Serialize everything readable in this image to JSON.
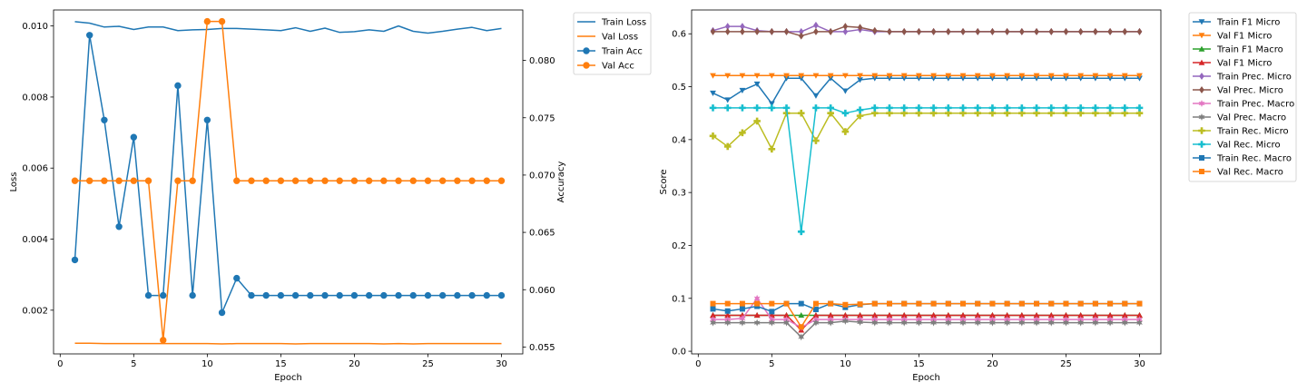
{
  "chart_data": [
    {
      "type": "line",
      "xlabel": "Epoch",
      "ylabel_left": "Loss",
      "ylabel_right": "Accuracy",
      "xlim": [
        -0.45,
        31.45
      ],
      "ylim_left": [
        0.00077,
        0.01045
      ],
      "ylim_right": [
        0.0544,
        0.0844
      ],
      "x_ticks": [
        0,
        5,
        10,
        15,
        20,
        25,
        30
      ],
      "y_ticks_left": [
        0.002,
        0.004,
        0.006,
        0.008,
        0.01
      ],
      "y_ticks_left_labels": [
        "0.002",
        "0.004",
        "0.006",
        "0.008",
        "0.010"
      ],
      "y_ticks_right": [
        0.055,
        0.06,
        0.065,
        0.07,
        0.075,
        0.08
      ],
      "y_ticks_right_labels": [
        "0.055",
        "0.060",
        "0.065",
        "0.070",
        "0.075",
        "0.080"
      ],
      "grid": false,
      "legend_position": "outside top-right",
      "x": [
        1,
        2,
        3,
        4,
        5,
        6,
        7,
        8,
        9,
        10,
        11,
        12,
        13,
        14,
        15,
        16,
        17,
        18,
        19,
        20,
        21,
        22,
        23,
        24,
        25,
        26,
        27,
        28,
        29,
        30
      ],
      "series": [
        {
          "name": "Train Loss",
          "axis": "left",
          "color": "#1f77b4",
          "marker": "none",
          "values": [
            0.01012,
            0.01008,
            0.00997,
            0.00999,
            0.0099,
            0.00997,
            0.00997,
            0.00987,
            0.00989,
            0.0099,
            0.00993,
            0.00993,
            0.00991,
            0.00989,
            0.00987,
            0.00995,
            0.00985,
            0.00994,
            0.00982,
            0.00984,
            0.00989,
            0.00985,
            0.01,
            0.00985,
            0.0098,
            0.00985,
            0.00991,
            0.00996,
            0.00987,
            0.00993
          ]
        },
        {
          "name": "Val Loss",
          "axis": "left",
          "color": "#ff7f0e",
          "marker": "none",
          "values": [
            0.00107,
            0.00107,
            0.00106,
            0.00106,
            0.00106,
            0.00106,
            0.00106,
            0.00106,
            0.00106,
            0.00106,
            0.00105,
            0.00106,
            0.00106,
            0.00106,
            0.00106,
            0.00105,
            0.00106,
            0.00106,
            0.00106,
            0.00106,
            0.00106,
            0.00105,
            0.00106,
            0.00105,
            0.00106,
            0.00106,
            0.00106,
            0.00106,
            0.00106,
            0.00106
          ]
        },
        {
          "name": "Train Acc",
          "axis": "right",
          "color": "#1f77b4",
          "marker": "circle",
          "values": [
            0.0626,
            0.0822,
            0.0748,
            0.0655,
            0.0733,
            0.0595,
            0.0595,
            0.0778,
            0.0595,
            0.0748,
            0.058,
            0.061,
            0.0595,
            0.0595,
            0.0595,
            0.0595,
            0.0595,
            0.0595,
            0.0595,
            0.0595,
            0.0595,
            0.0595,
            0.0595,
            0.0595,
            0.0595,
            0.0595,
            0.0595,
            0.0595,
            0.0595,
            0.0595
          ]
        },
        {
          "name": "Val Acc",
          "axis": "right",
          "color": "#ff7f0e",
          "marker": "circle",
          "values": [
            0.0695,
            0.0695,
            0.0695,
            0.0695,
            0.0695,
            0.0695,
            0.0556,
            0.0695,
            0.0695,
            0.0834,
            0.0834,
            0.0695,
            0.0695,
            0.0695,
            0.0695,
            0.0695,
            0.0695,
            0.0695,
            0.0695,
            0.0695,
            0.0695,
            0.0695,
            0.0695,
            0.0695,
            0.0695,
            0.0695,
            0.0695,
            0.0695,
            0.0695,
            0.0695
          ]
        }
      ]
    },
    {
      "type": "line",
      "xlabel": "Epoch",
      "ylabel": "Score",
      "xlim": [
        -0.45,
        31.45
      ],
      "ylim": [
        -0.005,
        0.645
      ],
      "x_ticks": [
        0,
        5,
        10,
        15,
        20,
        25,
        30
      ],
      "y_ticks": [
        0.0,
        0.1,
        0.2,
        0.3,
        0.4,
        0.5,
        0.6
      ],
      "y_ticks_labels": [
        "0.0",
        "0.1",
        "0.2",
        "0.3",
        "0.4",
        "0.5",
        "0.6"
      ],
      "grid": false,
      "legend_position": "outside top-right",
      "x": [
        1,
        2,
        3,
        4,
        5,
        6,
        7,
        8,
        9,
        10,
        11,
        12,
        13,
        14,
        15,
        16,
        17,
        18,
        19,
        20,
        21,
        22,
        23,
        24,
        25,
        26,
        27,
        28,
        29,
        30
      ],
      "series": [
        {
          "name": "Train F1 Micro",
          "color": "#1f77b4",
          "marker": "triangle_down",
          "values": [
            0.488,
            0.475,
            0.493,
            0.505,
            0.468,
            0.516,
            0.516,
            0.483,
            0.516,
            0.492,
            0.513,
            0.516,
            0.516,
            0.516,
            0.516,
            0.516,
            0.516,
            0.516,
            0.516,
            0.516,
            0.516,
            0.516,
            0.516,
            0.516,
            0.516,
            0.516,
            0.516,
            0.516,
            0.516,
            0.516
          ]
        },
        {
          "name": "Val F1 Micro",
          "color": "#ff7f0e",
          "marker": "triangle_down",
          "values": [
            0.521,
            0.521,
            0.521,
            0.521,
            0.521,
            0.521,
            0.521,
            0.521,
            0.521,
            0.521,
            0.521,
            0.521,
            0.521,
            0.521,
            0.521,
            0.521,
            0.521,
            0.521,
            0.521,
            0.521,
            0.521,
            0.521,
            0.521,
            0.521,
            0.521,
            0.521,
            0.521,
            0.521,
            0.521,
            0.521
          ]
        },
        {
          "name": "Train F1 Macro",
          "color": "#2ca02c",
          "marker": "triangle_up",
          "values": [
            0.068,
            0.068,
            0.068,
            0.068,
            0.068,
            0.068,
            0.068,
            0.068,
            0.068,
            0.068,
            0.068,
            0.068,
            0.068,
            0.068,
            0.068,
            0.068,
            0.068,
            0.068,
            0.068,
            0.068,
            0.068,
            0.068,
            0.068,
            0.068,
            0.068,
            0.068,
            0.068,
            0.068,
            0.068,
            0.068
          ]
        },
        {
          "name": "Val F1 Micro",
          "color": "#d62728",
          "marker": "triangle_up",
          "values": [
            0.068,
            0.068,
            0.068,
            0.068,
            0.068,
            0.068,
            0.04,
            0.068,
            0.068,
            0.068,
            0.068,
            0.068,
            0.068,
            0.068,
            0.068,
            0.068,
            0.068,
            0.068,
            0.068,
            0.068,
            0.068,
            0.068,
            0.068,
            0.068,
            0.068,
            0.068,
            0.068,
            0.068,
            0.068,
            0.068
          ]
        },
        {
          "name": "Train Prec. Micro",
          "color": "#9467bd",
          "marker": "diamond",
          "values": [
            0.606,
            0.614,
            0.614,
            0.606,
            0.604,
            0.604,
            0.604,
            0.616,
            0.604,
            0.604,
            0.608,
            0.604,
            0.604,
            0.604,
            0.604,
            0.604,
            0.604,
            0.604,
            0.604,
            0.604,
            0.604,
            0.604,
            0.604,
            0.604,
            0.604,
            0.604,
            0.604,
            0.604,
            0.604,
            0.604
          ]
        },
        {
          "name": "Val Prec. Micro",
          "color": "#8c564b",
          "marker": "diamond",
          "values": [
            0.604,
            0.604,
            0.604,
            0.604,
            0.604,
            0.604,
            0.596,
            0.604,
            0.604,
            0.614,
            0.612,
            0.606,
            0.604,
            0.604,
            0.604,
            0.604,
            0.604,
            0.604,
            0.604,
            0.604,
            0.604,
            0.604,
            0.604,
            0.604,
            0.604,
            0.604,
            0.604,
            0.604,
            0.604,
            0.604
          ]
        },
        {
          "name": "Train Prec. Macro",
          "color": "#e377c2",
          "marker": "star",
          "values": [
            0.06,
            0.06,
            0.062,
            0.1,
            0.06,
            0.06,
            0.045,
            0.06,
            0.06,
            0.06,
            0.06,
            0.06,
            0.06,
            0.06,
            0.06,
            0.06,
            0.06,
            0.06,
            0.06,
            0.06,
            0.06,
            0.06,
            0.06,
            0.06,
            0.06,
            0.06,
            0.06,
            0.06,
            0.06,
            0.06
          ]
        },
        {
          "name": "Val Prec. Macro",
          "color": "#7f7f7f",
          "marker": "star",
          "values": [
            0.054,
            0.054,
            0.054,
            0.054,
            0.054,
            0.054,
            0.027,
            0.054,
            0.054,
            0.057,
            0.055,
            0.054,
            0.054,
            0.054,
            0.054,
            0.054,
            0.054,
            0.054,
            0.054,
            0.054,
            0.054,
            0.054,
            0.054,
            0.054,
            0.054,
            0.054,
            0.054,
            0.054,
            0.054,
            0.054
          ]
        },
        {
          "name": "Train Rec. Micro",
          "color": "#bcbd22",
          "marker": "plus",
          "values": [
            0.407,
            0.387,
            0.413,
            0.435,
            0.382,
            0.45,
            0.45,
            0.398,
            0.45,
            0.415,
            0.445,
            0.45,
            0.45,
            0.45,
            0.45,
            0.45,
            0.45,
            0.45,
            0.45,
            0.45,
            0.45,
            0.45,
            0.45,
            0.45,
            0.45,
            0.45,
            0.45,
            0.45,
            0.45,
            0.45
          ]
        },
        {
          "name": "Val Rec. Micro",
          "color": "#17becf",
          "marker": "plus",
          "values": [
            0.46,
            0.46,
            0.46,
            0.46,
            0.46,
            0.46,
            0.226,
            0.46,
            0.46,
            0.45,
            0.456,
            0.46,
            0.46,
            0.46,
            0.46,
            0.46,
            0.46,
            0.46,
            0.46,
            0.46,
            0.46,
            0.46,
            0.46,
            0.46,
            0.46,
            0.46,
            0.46,
            0.46,
            0.46,
            0.46
          ]
        },
        {
          "name": "Train Rec. Macro",
          "color": "#1f77b4",
          "marker": "square",
          "values": [
            0.08,
            0.076,
            0.08,
            0.085,
            0.075,
            0.09,
            0.09,
            0.079,
            0.09,
            0.083,
            0.088,
            0.09,
            0.09,
            0.09,
            0.09,
            0.09,
            0.09,
            0.09,
            0.09,
            0.09,
            0.09,
            0.09,
            0.09,
            0.09,
            0.09,
            0.09,
            0.09,
            0.09,
            0.09,
            0.09
          ]
        },
        {
          "name": "Val Rec. Macro",
          "color": "#ff7f0e",
          "marker": "square",
          "values": [
            0.09,
            0.09,
            0.09,
            0.09,
            0.09,
            0.09,
            0.046,
            0.09,
            0.09,
            0.088,
            0.089,
            0.09,
            0.09,
            0.09,
            0.09,
            0.09,
            0.09,
            0.09,
            0.09,
            0.09,
            0.09,
            0.09,
            0.09,
            0.09,
            0.09,
            0.09,
            0.09,
            0.09,
            0.09,
            0.09
          ]
        }
      ]
    }
  ]
}
